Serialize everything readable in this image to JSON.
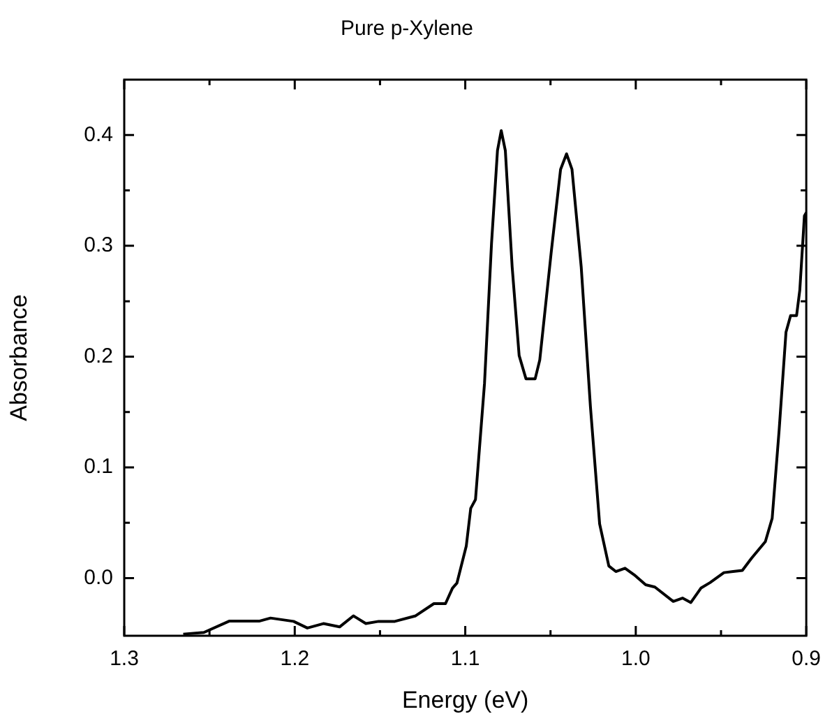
{
  "chart_data": {
    "type": "line",
    "title": "Pure p-Xylene",
    "xlabel": "Energy (eV)",
    "ylabel": "Absorbance",
    "xlim": [
      1.3,
      0.9
    ],
    "ylim": [
      -0.052,
      0.45
    ],
    "xticks": [
      {
        "value": 1.3,
        "label": "1.3"
      },
      {
        "value": 1.25,
        "label": null
      },
      {
        "value": 1.2,
        "label": "1.2"
      },
      {
        "value": 1.15,
        "label": null
      },
      {
        "value": 1.1,
        "label": "1.1"
      },
      {
        "value": 1.05,
        "label": null
      },
      {
        "value": 1.0,
        "label": "1.0"
      },
      {
        "value": 0.95,
        "label": null
      },
      {
        "value": 0.9,
        "label": "0.9"
      }
    ],
    "yticks": [
      {
        "value": 0,
        "label": "0.0"
      },
      {
        "value": 0.05,
        "label": null
      },
      {
        "value": 0.1,
        "label": "0.1"
      },
      {
        "value": 0.15,
        "label": null
      },
      {
        "value": 0.2,
        "label": "0.2"
      },
      {
        "value": 0.25,
        "label": null
      },
      {
        "value": 0.3,
        "label": "0.3"
      },
      {
        "value": 0.35,
        "label": null
      },
      {
        "value": 0.4,
        "label": "0.4"
      }
    ],
    "marker": "none",
    "line_style": "solid",
    "legend": false,
    "series": [
      {
        "color": "#000000",
        "x": [
          1.2654,
          1.2533,
          1.2385,
          1.2209,
          1.2142,
          1.2007,
          1.1926,
          1.1832,
          1.1737,
          1.1656,
          1.1583,
          1.1508,
          1.1413,
          1.1291,
          1.1184,
          1.1116,
          1.1075,
          1.1049,
          1.0994,
          1.0968,
          1.094,
          1.0887,
          1.0846,
          1.0811,
          1.0789,
          1.0765,
          1.0725,
          1.0684,
          1.0644,
          1.059,
          1.0563,
          1.0496,
          1.0441,
          1.0406,
          1.0374,
          1.032,
          1.0266,
          1.0212,
          1.0158,
          1.0117,
          1.0063,
          1.0009,
          0.9942,
          0.9888,
          0.978,
          0.9726,
          0.9677,
          0.9618,
          0.9564,
          0.9483,
          0.9429,
          0.9375,
          0.9321,
          0.924,
          0.92,
          0.9159,
          0.9119,
          0.9092,
          0.9057,
          0.9038,
          0.9011,
          0.9
        ],
        "values": [
          -0.0505,
          -0.049,
          -0.0388,
          -0.0388,
          -0.036,
          -0.039,
          -0.045,
          -0.041,
          -0.044,
          -0.034,
          -0.041,
          -0.039,
          -0.039,
          -0.034,
          -0.023,
          -0.023,
          -0.009,
          -0.0045,
          0.029,
          0.063,
          0.071,
          0.176,
          0.302,
          0.386,
          0.404,
          0.386,
          0.281,
          0.201,
          0.18,
          0.18,
          0.197,
          0.294,
          0.369,
          0.383,
          0.369,
          0.281,
          0.155,
          0.049,
          0.011,
          0.006,
          0.009,
          0.003,
          -0.006,
          -0.008,
          -0.021,
          -0.018,
          -0.022,
          -0.009,
          -0.004,
          0.005,
          0.006,
          0.007,
          0.018,
          0.033,
          0.054,
          0.134,
          0.222,
          0.237,
          0.237,
          0.26,
          0.327,
          0.33
        ]
      }
    ]
  }
}
